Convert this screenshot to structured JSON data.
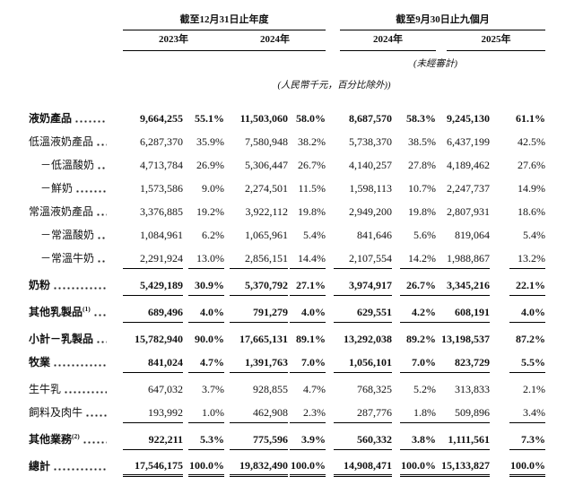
{
  "table": {
    "header": {
      "period_groups": [
        {
          "title": "截至12月31日止年度",
          "years": [
            "2023年",
            "2024年"
          ]
        },
        {
          "title": "截至9月30日止九個月",
          "years": [
            "2024年",
            "2025年"
          ]
        }
      ],
      "unaudited_note": "(未經審計)",
      "unit_note": "(人民幣千元，百分比除外))"
    },
    "rows": [
      {
        "label": "液奶產品",
        "sup": "",
        "indent": 0,
        "bold": true,
        "underline": "none",
        "values": [
          "9,664,255",
          "55.1%",
          "11,503,060",
          "58.0%",
          "8,687,570",
          "58.3%",
          "9,245,130",
          "61.1%"
        ]
      },
      {
        "label": "低溫液奶產品",
        "sup": "",
        "indent": 0,
        "bold": false,
        "underline": "none",
        "values": [
          "6,287,370",
          "35.9%",
          "7,580,948",
          "38.2%",
          "5,738,370",
          "38.5%",
          "6,437,199",
          "42.5%"
        ]
      },
      {
        "label": "－低溫酸奶",
        "sup": "",
        "indent": 1,
        "bold": false,
        "underline": "none",
        "values": [
          "4,713,784",
          "26.9%",
          "5,306,447",
          "26.7%",
          "4,140,257",
          "27.8%",
          "4,189,462",
          "27.6%"
        ]
      },
      {
        "label": "－鮮奶",
        "sup": "",
        "indent": 1,
        "bold": false,
        "underline": "none",
        "values": [
          "1,573,586",
          "9.0%",
          "2,274,501",
          "11.5%",
          "1,598,113",
          "10.7%",
          "2,247,737",
          "14.9%"
        ]
      },
      {
        "label": "常溫液奶產品",
        "sup": "",
        "indent": 0,
        "bold": false,
        "underline": "none",
        "values": [
          "3,376,885",
          "19.2%",
          "3,922,112",
          "19.8%",
          "2,949,200",
          "19.8%",
          "2,807,931",
          "18.6%"
        ]
      },
      {
        "label": "－常溫酸奶",
        "sup": "",
        "indent": 1,
        "bold": false,
        "underline": "none",
        "values": [
          "1,084,961",
          "6.2%",
          "1,065,961",
          "5.4%",
          "841,646",
          "5.6%",
          "819,064",
          "5.4%"
        ]
      },
      {
        "label": "－常溫牛奶",
        "sup": "",
        "indent": 1,
        "bold": false,
        "underline": "single",
        "values": [
          "2,291,924",
          "13.0%",
          "2,856,151",
          "14.4%",
          "2,107,554",
          "14.2%",
          "1,988,867",
          "13.2%"
        ]
      },
      {
        "label": "奶粉",
        "sup": "",
        "indent": 0,
        "bold": true,
        "underline": "single",
        "values": [
          "5,429,189",
          "30.9%",
          "5,370,792",
          "27.1%",
          "3,974,917",
          "26.7%",
          "3,345,216",
          "22.1%"
        ]
      },
      {
        "label": "其他乳製品",
        "sup": "(1)",
        "indent": 0,
        "bold": true,
        "underline": "single",
        "values": [
          "689,496",
          "4.0%",
          "791,279",
          "4.0%",
          "629,551",
          "4.2%",
          "608,191",
          "4.0%"
        ]
      },
      {
        "label": "小計－乳製品",
        "sup": "",
        "indent": 0,
        "bold": true,
        "underline": "none",
        "values": [
          "15,782,940",
          "90.0%",
          "17,665,131",
          "89.1%",
          "13,292,038",
          "89.2%",
          "13,198,537",
          "87.2%"
        ]
      },
      {
        "label": "牧業",
        "sup": "",
        "indent": 0,
        "bold": true,
        "underline": "single",
        "values": [
          "841,024",
          "4.7%",
          "1,391,763",
          "7.0%",
          "1,056,101",
          "7.0%",
          "823,729",
          "5.5%"
        ]
      },
      {
        "label": "生牛乳",
        "sup": "",
        "indent": 0,
        "bold": false,
        "underline": "none",
        "values": [
          "647,032",
          "3.7%",
          "928,855",
          "4.7%",
          "768,325",
          "5.2%",
          "313,833",
          "2.1%"
        ]
      },
      {
        "label": "飼料及肉牛",
        "sup": "",
        "indent": 0,
        "bold": false,
        "underline": "single",
        "values": [
          "193,992",
          "1.0%",
          "462,908",
          "2.3%",
          "287,776",
          "1.8%",
          "509,896",
          "3.4%"
        ]
      },
      {
        "label": "其他業務",
        "sup": "(2)",
        "indent": 0,
        "bold": true,
        "underline": "single",
        "values": [
          "922,211",
          "5.3%",
          "775,596",
          "3.9%",
          "560,332",
          "3.8%",
          "1,111,561",
          "7.3%"
        ]
      },
      {
        "label": "總計",
        "sup": "",
        "indent": 0,
        "bold": true,
        "underline": "double",
        "values": [
          "17,546,175",
          "100.0%",
          "19,832,490",
          "100.0%",
          "14,908,471",
          "100.0%",
          "15,133,827",
          "100.0%"
        ]
      }
    ]
  }
}
